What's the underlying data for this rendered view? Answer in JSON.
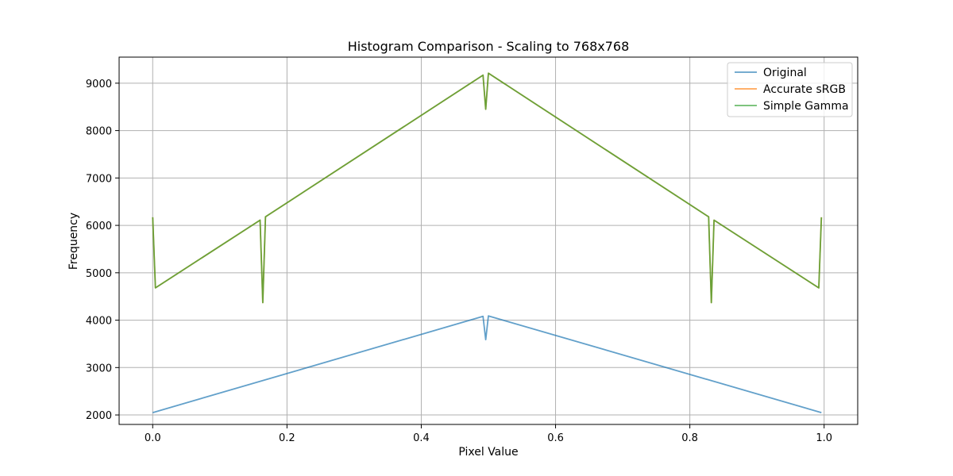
{
  "chart_data": {
    "type": "line",
    "title": "Histogram Comparison - Scaling to 768x768",
    "xlabel": "Pixel Value",
    "ylabel": "Frequency",
    "xlim": [
      -0.05,
      1.05
    ],
    "ylim": [
      1800,
      9550
    ],
    "xticks": [
      0.0,
      0.2,
      0.4,
      0.6,
      0.8,
      1.0
    ],
    "xtick_labels": [
      "0.0",
      "0.2",
      "0.4",
      "0.6",
      "0.8",
      "1.0"
    ],
    "yticks": [
      2000,
      3000,
      4000,
      5000,
      6000,
      7000,
      8000,
      9000
    ],
    "ytick_labels": [
      "2000",
      "3000",
      "4000",
      "5000",
      "6000",
      "7000",
      "8000",
      "9000"
    ],
    "grid": true,
    "legend": "top-right",
    "series": [
      {
        "name": "Original",
        "color": "#1f77b4",
        "opacity": 0.7,
        "x": [
          0.0,
          0.492,
          0.496,
          0.5,
          0.996
        ],
        "y": [
          2050,
          4080,
          3590,
          4090,
          2050
        ]
      },
      {
        "name": "Accurate sRGB",
        "color": "#ff7f0e",
        "opacity": 0.7,
        "x": [
          0.0,
          0.004,
          0.16,
          0.164,
          0.168,
          0.492,
          0.496,
          0.5,
          0.828,
          0.832,
          0.836,
          0.992,
          0.996
        ],
        "y": [
          6170,
          4680,
          6110,
          4370,
          6180,
          9170,
          8450,
          9210,
          6180,
          4370,
          6110,
          4680,
          6170
        ]
      },
      {
        "name": "Simple Gamma",
        "color": "#2ca02c",
        "opacity": 0.7,
        "x": [
          0.0,
          0.004,
          0.16,
          0.164,
          0.168,
          0.492,
          0.496,
          0.5,
          0.828,
          0.832,
          0.836,
          0.992,
          0.996
        ],
        "y": [
          6170,
          4680,
          6110,
          4370,
          6180,
          9170,
          8450,
          9210,
          6180,
          4370,
          6110,
          4680,
          6170
        ]
      }
    ]
  }
}
